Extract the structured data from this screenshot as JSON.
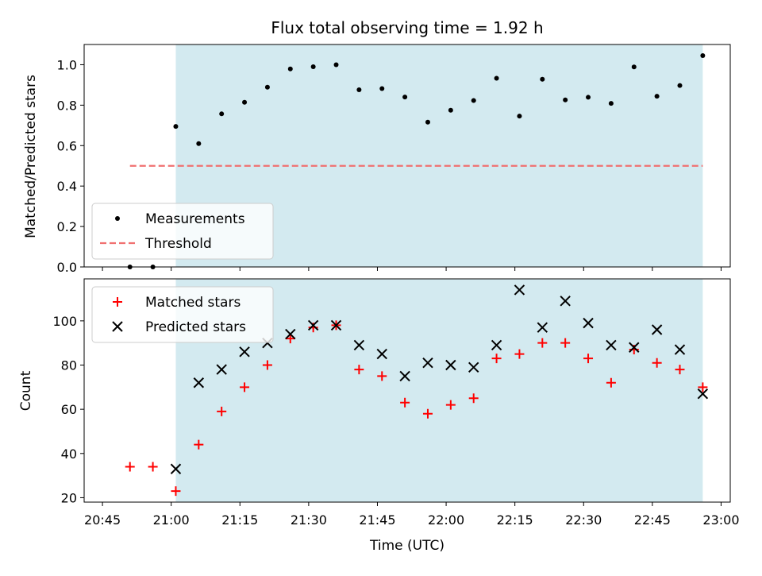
{
  "chart_data": {
    "title": "Flux total observing time = 1.92 h",
    "xlabel": "Time (UTC)",
    "x_ticks": [
      "20:45",
      "21:00",
      "21:15",
      "21:30",
      "21:45",
      "22:00",
      "22:15",
      "22:30",
      "22:45",
      "23:00"
    ],
    "x_range": [
      "20:41",
      "23:02"
    ],
    "observing_window": {
      "start": "21:01",
      "end": "22:56",
      "color": "#d3eaf0"
    },
    "top_panel": {
      "type": "scatter",
      "ylabel": "Matched/Predicted stars",
      "ylim": [
        0,
        1.1
      ],
      "y_ticks": [
        "0.0",
        "0.2",
        "0.4",
        "0.6",
        "0.8",
        "1.0"
      ],
      "legend_position": "lower-left",
      "series": [
        {
          "name": "Measurements",
          "marker": "dot",
          "color": "#000000",
          "points": [
            [
              "20:51",
              0.0
            ],
            [
              "20:56",
              0.0
            ],
            [
              "21:01",
              0.695
            ],
            [
              "21:06",
              0.61
            ],
            [
              "21:11",
              0.757
            ],
            [
              "21:16",
              0.814
            ],
            [
              "21:21",
              0.889
            ],
            [
              "21:26",
              0.979
            ],
            [
              "21:31",
              0.99
            ],
            [
              "21:36",
              1.0
            ],
            [
              "21:41",
              0.876
            ],
            [
              "21:46",
              0.882
            ],
            [
              "21:51",
              0.84
            ],
            [
              "21:56",
              0.716
            ],
            [
              "22:01",
              0.775
            ],
            [
              "22:06",
              0.823
            ],
            [
              "22:11",
              0.933
            ],
            [
              "22:16",
              0.746
            ],
            [
              "22:21",
              0.928
            ],
            [
              "22:26",
              0.826
            ],
            [
              "22:31",
              0.839
            ],
            [
              "22:36",
              0.809
            ],
            [
              "22:41",
              0.989
            ],
            [
              "22:46",
              0.844
            ],
            [
              "22:51",
              0.897
            ],
            [
              "22:56",
              1.045
            ]
          ]
        },
        {
          "name": "Threshold",
          "marker": "dashed-line",
          "color": "#f07070",
          "points": [
            [
              "20:51",
              0.5
            ],
            [
              "22:56",
              0.5
            ]
          ]
        }
      ]
    },
    "bottom_panel": {
      "type": "scatter",
      "ylabel": "Count",
      "ylim": [
        18,
        119
      ],
      "y_ticks": [
        "20",
        "40",
        "60",
        "80",
        "100"
      ],
      "legend_position": "upper-left",
      "series": [
        {
          "name": "Matched stars",
          "marker": "plus",
          "color": "#ff0000",
          "points": [
            [
              "20:51",
              34
            ],
            [
              "20:56",
              34
            ],
            [
              "21:01",
              23
            ],
            [
              "21:06",
              44
            ],
            [
              "21:11",
              59
            ],
            [
              "21:16",
              70
            ],
            [
              "21:21",
              80
            ],
            [
              "21:26",
              92
            ],
            [
              "21:31",
              97
            ],
            [
              "21:36",
              98
            ],
            [
              "21:41",
              78
            ],
            [
              "21:46",
              75
            ],
            [
              "21:51",
              63
            ],
            [
              "21:56",
              58
            ],
            [
              "22:01",
              62
            ],
            [
              "22:06",
              65
            ],
            [
              "22:11",
              83
            ],
            [
              "22:16",
              85
            ],
            [
              "22:21",
              90
            ],
            [
              "22:26",
              90
            ],
            [
              "22:31",
              83
            ],
            [
              "22:36",
              72
            ],
            [
              "22:41",
              87
            ],
            [
              "22:46",
              81
            ],
            [
              "22:51",
              78
            ],
            [
              "22:56",
              70
            ]
          ]
        },
        {
          "name": "Predicted stars",
          "marker": "x",
          "color": "#000000",
          "points": [
            [
              "21:01",
              33
            ],
            [
              "21:06",
              72
            ],
            [
              "21:11",
              78
            ],
            [
              "21:16",
              86
            ],
            [
              "21:21",
              90
            ],
            [
              "21:26",
              94
            ],
            [
              "21:31",
              98
            ],
            [
              "21:36",
              98
            ],
            [
              "21:41",
              89
            ],
            [
              "21:46",
              85
            ],
            [
              "21:51",
              75
            ],
            [
              "21:56",
              81
            ],
            [
              "22:01",
              80
            ],
            [
              "22:06",
              79
            ],
            [
              "22:11",
              89
            ],
            [
              "22:16",
              114
            ],
            [
              "22:21",
              97
            ],
            [
              "22:26",
              109
            ],
            [
              "22:31",
              99
            ],
            [
              "22:36",
              89
            ],
            [
              "22:41",
              88
            ],
            [
              "22:46",
              96
            ],
            [
              "22:51",
              87
            ],
            [
              "22:56",
              67
            ]
          ]
        }
      ]
    }
  }
}
